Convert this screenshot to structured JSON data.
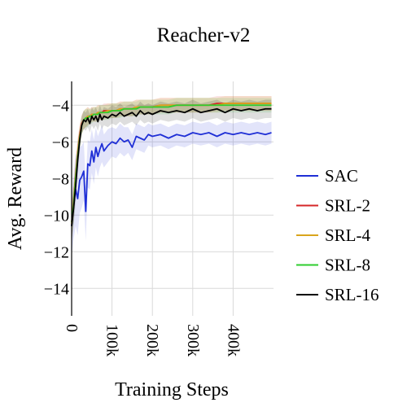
{
  "chart_data": {
    "type": "line",
    "title": "Reacher-v2",
    "xlabel": "Training Steps",
    "ylabel": "Avg. Reward",
    "xlim": [
      0,
      500000
    ],
    "ylim": [
      -15.5,
      -2.7
    ],
    "x_ticks": [
      0,
      100000,
      200000,
      300000,
      400000
    ],
    "x_tick_labels": [
      "0",
      "100k",
      "200k",
      "300k",
      "400k"
    ],
    "y_ticks": [
      -4,
      -6,
      -8,
      -10,
      -12,
      -14
    ],
    "y_tick_labels": [
      "−4",
      "−6",
      "−8",
      "−10",
      "−12",
      "−14"
    ],
    "grid": true,
    "legend_position": "right",
    "x": [
      0,
      5000,
      10000,
      15000,
      20000,
      25000,
      30000,
      35000,
      40000,
      45000,
      50000,
      55000,
      60000,
      65000,
      70000,
      75000,
      80000,
      90000,
      100000,
      110000,
      120000,
      130000,
      140000,
      150000,
      160000,
      170000,
      180000,
      190000,
      200000,
      220000,
      240000,
      260000,
      280000,
      300000,
      320000,
      340000,
      360000,
      380000,
      400000,
      420000,
      440000,
      460000,
      480000,
      495000
    ],
    "series": [
      {
        "name": "SAC",
        "color": "#1f2fd6",
        "values": [
          -10.6,
          -9.5,
          -8.6,
          -9.1,
          -8.1,
          -7.9,
          -7.6,
          -9.8,
          -7.2,
          -7.3,
          -6.5,
          -7.1,
          -6.3,
          -6.8,
          -6.4,
          -6.1,
          -6.5,
          -6.2,
          -6.0,
          -6.1,
          -5.8,
          -6.0,
          -5.9,
          -6.3,
          -5.7,
          -5.8,
          -5.9,
          -5.6,
          -5.7,
          -5.6,
          -5.8,
          -5.6,
          -5.7,
          -5.5,
          -5.6,
          -5.5,
          -5.7,
          -5.5,
          -5.6,
          -5.5,
          -5.6,
          -5.5,
          -5.6,
          -5.5
        ],
        "band": [
          1.6,
          1.8,
          2.0,
          2.0,
          1.8,
          1.7,
          1.6,
          1.6,
          1.3,
          1.3,
          1.2,
          1.2,
          1.1,
          1.1,
          1.0,
          1.0,
          0.9,
          0.9,
          0.8,
          0.8,
          0.8,
          0.8,
          0.7,
          0.7,
          0.7,
          0.7,
          0.7,
          0.6,
          0.6,
          0.6,
          0.6,
          0.6,
          0.6,
          0.6,
          0.6,
          0.6,
          0.6,
          0.6,
          0.6,
          0.6,
          0.6,
          0.6,
          0.6,
          0.6
        ]
      },
      {
        "name": "SRL-2",
        "color": "#d62728",
        "values": [
          -10.4,
          -9.2,
          -7.8,
          -6.6,
          -5.6,
          -5.0,
          -4.8,
          -4.7,
          -4.6,
          -4.6,
          -4.5,
          -4.5,
          -4.5,
          -4.4,
          -4.4,
          -4.4,
          -4.3,
          -4.3,
          -4.3,
          -4.3,
          -4.2,
          -4.2,
          -4.2,
          -4.2,
          -4.1,
          -4.1,
          -4.1,
          -4.1,
          -4.1,
          -4.0,
          -4.0,
          -4.0,
          -4.0,
          -4.0,
          -4.0,
          -4.0,
          -3.9,
          -3.9,
          -3.9,
          -3.9,
          -3.9,
          -3.9,
          -3.9,
          -3.9
        ],
        "band": [
          1.0,
          1.0,
          0.9,
          0.8,
          0.6,
          0.5,
          0.5,
          0.5,
          0.5,
          0.4,
          0.4,
          0.4,
          0.4,
          0.4,
          0.4,
          0.4,
          0.4,
          0.4,
          0.4,
          0.4,
          0.4,
          0.4,
          0.4,
          0.4,
          0.4,
          0.4,
          0.4,
          0.4,
          0.4,
          0.4,
          0.4,
          0.4,
          0.4,
          0.4,
          0.4,
          0.4,
          0.4,
          0.4,
          0.4,
          0.4,
          0.4,
          0.4,
          0.4,
          0.4
        ]
      },
      {
        "name": "SRL-4",
        "color": "#d9a51c",
        "values": [
          -10.5,
          -9.3,
          -7.9,
          -6.7,
          -5.7,
          -5.1,
          -4.8,
          -4.7,
          -4.6,
          -4.6,
          -4.5,
          -4.5,
          -4.5,
          -4.4,
          -4.4,
          -4.4,
          -4.4,
          -4.3,
          -4.3,
          -4.3,
          -4.2,
          -4.2,
          -4.2,
          -4.2,
          -4.1,
          -4.1,
          -4.1,
          -4.1,
          -4.1,
          -4.0,
          -4.0,
          -4.0,
          -4.0,
          -4.0,
          -4.0,
          -4.0,
          -4.0,
          -3.9,
          -3.9,
          -3.9,
          -3.9,
          -3.9,
          -3.9,
          -3.9
        ],
        "band": [
          1.0,
          1.0,
          0.9,
          0.8,
          0.6,
          0.5,
          0.5,
          0.5,
          0.5,
          0.4,
          0.4,
          0.4,
          0.4,
          0.4,
          0.4,
          0.4,
          0.4,
          0.4,
          0.4,
          0.4,
          0.4,
          0.4,
          0.4,
          0.4,
          0.4,
          0.4,
          0.4,
          0.4,
          0.4,
          0.4,
          0.4,
          0.4,
          0.4,
          0.4,
          0.4,
          0.4,
          0.4,
          0.4,
          0.4,
          0.4,
          0.4,
          0.4,
          0.4,
          0.4
        ]
      },
      {
        "name": "SRL-8",
        "color": "#2ecc2e",
        "values": [
          -10.4,
          -9.4,
          -8.0,
          -6.8,
          -5.8,
          -5.1,
          -4.8,
          -4.7,
          -4.7,
          -4.6,
          -4.6,
          -4.5,
          -4.5,
          -4.5,
          -4.4,
          -4.4,
          -4.4,
          -4.4,
          -4.3,
          -4.3,
          -4.3,
          -4.2,
          -4.2,
          -4.2,
          -4.2,
          -4.1,
          -4.1,
          -4.1,
          -4.1,
          -4.1,
          -4.1,
          -4.0,
          -4.0,
          -4.0,
          -4.0,
          -4.0,
          -4.0,
          -4.0,
          -4.0,
          -4.0,
          -4.0,
          -4.0,
          -4.0,
          -4.0
        ],
        "band": [
          1.0,
          1.0,
          0.9,
          0.8,
          0.6,
          0.5,
          0.5,
          0.5,
          0.5,
          0.4,
          0.4,
          0.4,
          0.4,
          0.4,
          0.4,
          0.4,
          0.4,
          0.4,
          0.4,
          0.4,
          0.4,
          0.4,
          0.4,
          0.4,
          0.4,
          0.4,
          0.4,
          0.4,
          0.4,
          0.4,
          0.4,
          0.4,
          0.4,
          0.4,
          0.4,
          0.4,
          0.4,
          0.4,
          0.4,
          0.4,
          0.4,
          0.4,
          0.4,
          0.4
        ]
      },
      {
        "name": "SRL-16",
        "color": "#000000",
        "values": [
          -10.6,
          -9.6,
          -8.4,
          -7.0,
          -5.9,
          -5.1,
          -4.8,
          -4.9,
          -4.7,
          -5.0,
          -4.6,
          -4.8,
          -4.6,
          -4.9,
          -4.5,
          -4.8,
          -4.6,
          -4.7,
          -4.5,
          -4.6,
          -4.4,
          -4.6,
          -4.5,
          -4.4,
          -4.6,
          -4.3,
          -4.5,
          -4.4,
          -4.5,
          -4.3,
          -4.4,
          -4.3,
          -4.4,
          -4.2,
          -4.4,
          -4.3,
          -4.2,
          -4.4,
          -4.2,
          -4.3,
          -4.2,
          -4.3,
          -4.2,
          -4.2
        ],
        "band": [
          1.0,
          1.0,
          0.9,
          0.8,
          0.6,
          0.5,
          0.5,
          0.5,
          0.5,
          0.5,
          0.5,
          0.5,
          0.5,
          0.5,
          0.5,
          0.5,
          0.5,
          0.5,
          0.5,
          0.5,
          0.5,
          0.5,
          0.5,
          0.5,
          0.5,
          0.5,
          0.5,
          0.5,
          0.5,
          0.5,
          0.5,
          0.5,
          0.5,
          0.5,
          0.5,
          0.5,
          0.5,
          0.5,
          0.5,
          0.5,
          0.5,
          0.5,
          0.5,
          0.5
        ]
      }
    ]
  }
}
